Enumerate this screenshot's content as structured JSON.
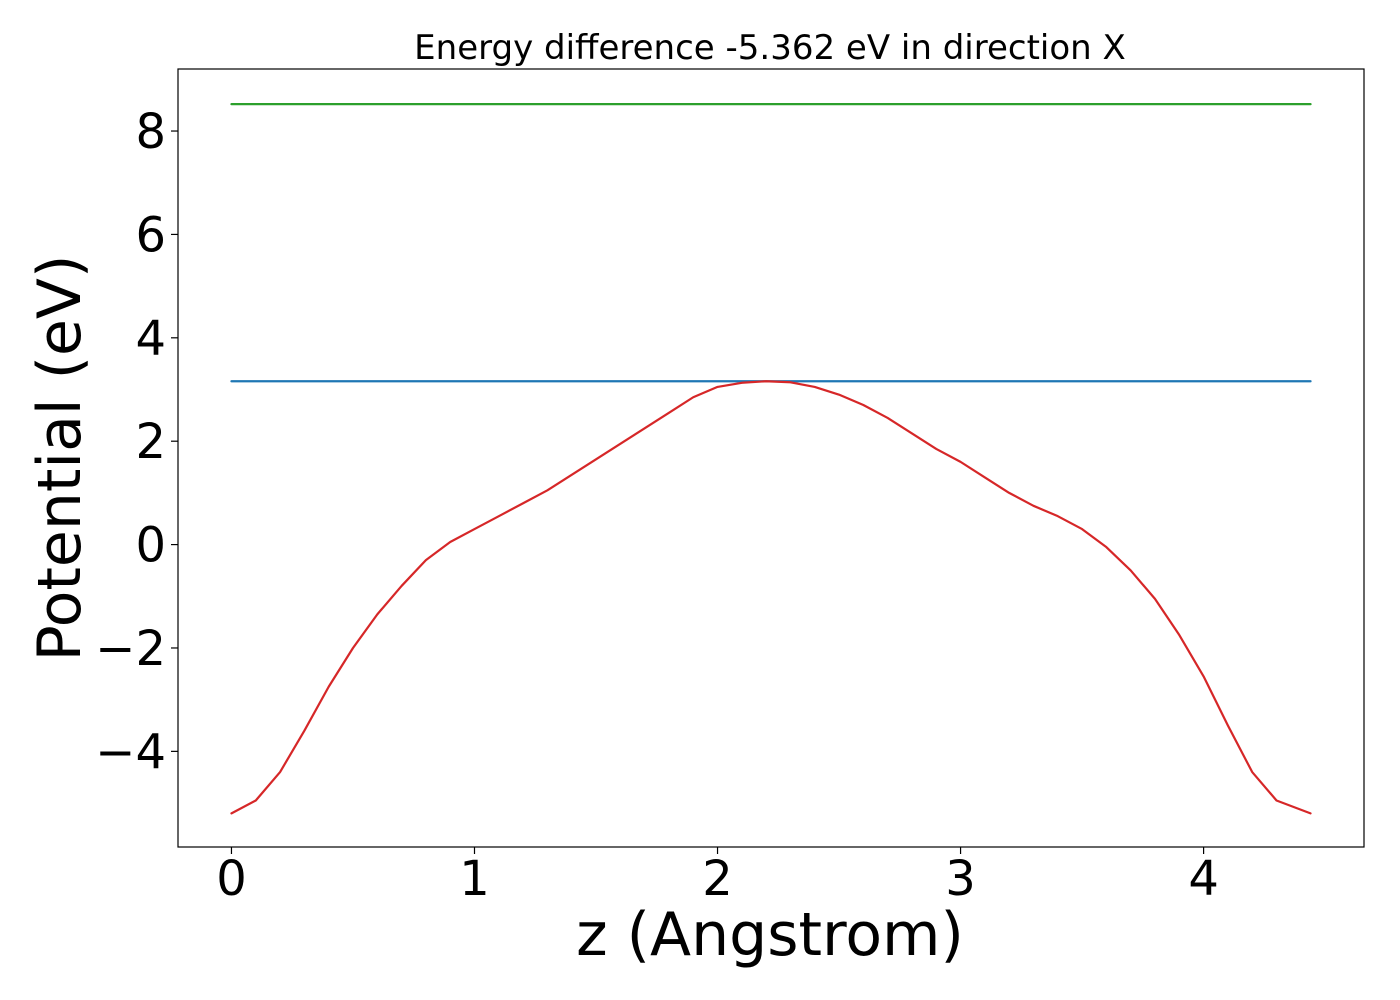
{
  "chart_data": {
    "type": "line",
    "title": "Energy difference -5.362 eV in direction X",
    "xlabel": "z (Angstrom)",
    "ylabel": "Potential (eV)",
    "xlim": [
      -0.22,
      4.66
    ],
    "ylim": [
      -5.85,
      9.2
    ],
    "x_ticks": [
      0,
      1,
      2,
      3,
      4
    ],
    "x_tick_labels": [
      "0",
      "1",
      "2",
      "3",
      "4"
    ],
    "y_ticks": [
      -4,
      -2,
      0,
      2,
      4,
      6,
      8
    ],
    "y_tick_labels": [
      "−4",
      "−2",
      "0",
      "2",
      "4",
      "6",
      "8"
    ],
    "grid": false,
    "series": [
      {
        "color": "#2ca02c",
        "x": [
          0,
          4.44
        ],
        "y": [
          8.52,
          8.52
        ]
      },
      {
        "color": "#1f77b4",
        "x": [
          0,
          4.44
        ],
        "y": [
          3.16,
          3.16
        ]
      },
      {
        "color": "#d62728",
        "x": [
          0.0,
          0.1,
          0.2,
          0.3,
          0.4,
          0.5,
          0.6,
          0.7,
          0.8,
          0.9,
          1.0,
          1.1,
          1.2,
          1.3,
          1.4,
          1.5,
          1.6,
          1.7,
          1.8,
          1.9,
          2.0,
          2.1,
          2.2,
          2.3,
          2.4,
          2.5,
          2.6,
          2.7,
          2.8,
          2.9,
          3.0,
          3.1,
          3.2,
          3.3,
          3.4,
          3.5,
          3.6,
          3.7,
          3.8,
          3.9,
          4.0,
          4.1,
          4.2,
          4.3,
          4.44
        ],
        "y": [
          -5.2,
          -4.95,
          -4.4,
          -3.6,
          -2.75,
          -2.0,
          -1.35,
          -0.8,
          -0.3,
          0.05,
          0.3,
          0.55,
          0.8,
          1.05,
          1.35,
          1.65,
          1.95,
          2.25,
          2.55,
          2.85,
          3.05,
          3.13,
          3.16,
          3.14,
          3.05,
          2.9,
          2.7,
          2.45,
          2.15,
          1.85,
          1.6,
          1.3,
          1.0,
          0.75,
          0.55,
          0.3,
          -0.05,
          -0.5,
          -1.05,
          -1.75,
          -2.55,
          -3.5,
          -4.4,
          -4.95,
          -5.2
        ]
      }
    ]
  }
}
